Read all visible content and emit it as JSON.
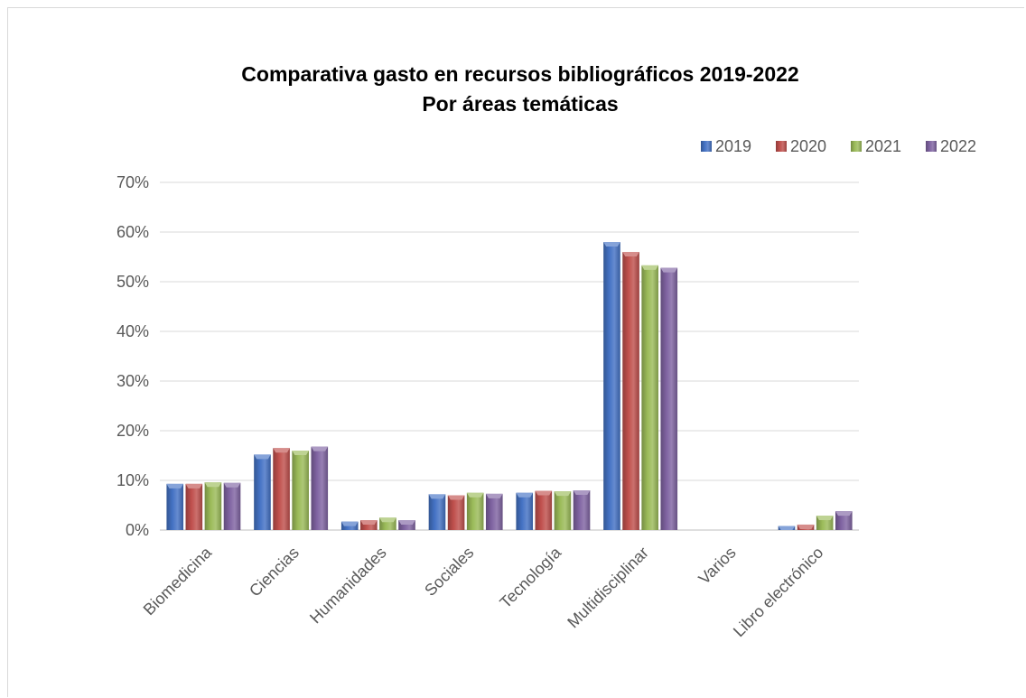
{
  "chart_data": {
    "type": "bar",
    "title": "Comparativa gasto en recursos bibliográficos 2019-2022",
    "subtitle": "Por áreas temáticas",
    "categories": [
      "Biomedicina",
      "Ciencias",
      "Humanidades",
      "Sociales",
      "Tecnología",
      "Multidisciplinar",
      "Varios",
      "Libro electrónico"
    ],
    "series": [
      {
        "name": "2019",
        "color": "#4472c4",
        "values": [
          9.3,
          15.2,
          1.7,
          7.2,
          7.5,
          58.0,
          0,
          0.8
        ]
      },
      {
        "name": "2020",
        "color": "#c0504d",
        "values": [
          9.3,
          16.5,
          2.0,
          7.0,
          7.9,
          56.0,
          0,
          1.1
        ]
      },
      {
        "name": "2021",
        "color": "#9bbb59",
        "values": [
          9.6,
          16.0,
          2.5,
          7.5,
          7.8,
          53.3,
          0,
          2.9
        ]
      },
      {
        "name": "2022",
        "color": "#8064a2",
        "values": [
          9.5,
          16.8,
          2.0,
          7.3,
          8.0,
          52.8,
          0,
          3.8
        ]
      }
    ],
    "ylim": [
      0,
      70
    ],
    "yticks": [
      "0%",
      "10%",
      "20%",
      "30%",
      "40%",
      "50%",
      "60%",
      "70%"
    ],
    "ytick_values": [
      0,
      10,
      20,
      30,
      40,
      50,
      60,
      70
    ],
    "xlabel": "",
    "ylabel": "",
    "grid": true,
    "legend_position": "top-right"
  }
}
